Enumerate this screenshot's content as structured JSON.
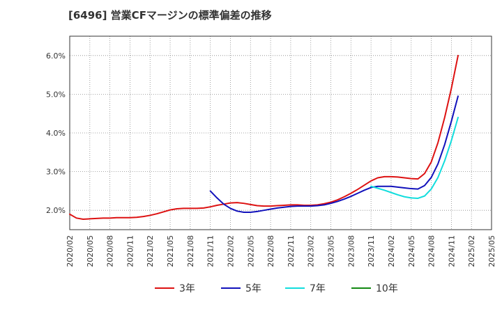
{
  "chart_data": {
    "type": "line",
    "title": "[6496]  営業CFマージンの標準偏差の推移",
    "xlabel": "",
    "ylabel": "",
    "ylim": [
      1.5,
      6.5
    ],
    "y_ticks": [
      2.0,
      3.0,
      4.0,
      5.0,
      6.0
    ],
    "y_tick_labels": [
      "2.0%",
      "3.0%",
      "4.0%",
      "5.0%",
      "6.0%"
    ],
    "x_ticks": [
      "2020/02",
      "2020/05",
      "2020/08",
      "2020/11",
      "2021/02",
      "2021/05",
      "2021/08",
      "2021/11",
      "2022/02",
      "2022/05",
      "2022/08",
      "2022/11",
      "2023/02",
      "2023/05",
      "2023/08",
      "2023/11",
      "2024/02",
      "2024/05",
      "2024/08",
      "2024/11",
      "2025/02",
      "2025/05"
    ],
    "grid": true,
    "legend_position": "bottom",
    "series": [
      {
        "name": "3年",
        "color": "#dd1111",
        "points": [
          [
            "2020/02",
            1.9
          ],
          [
            "2020/03",
            1.8
          ],
          [
            "2020/04",
            1.77
          ],
          [
            "2020/05",
            1.78
          ],
          [
            "2020/06",
            1.79
          ],
          [
            "2020/07",
            1.8
          ],
          [
            "2020/08",
            1.8
          ],
          [
            "2020/09",
            1.81
          ],
          [
            "2020/10",
            1.81
          ],
          [
            "2020/11",
            1.81
          ],
          [
            "2020/12",
            1.82
          ],
          [
            "2021/01",
            1.84
          ],
          [
            "2021/02",
            1.87
          ],
          [
            "2021/03",
            1.91
          ],
          [
            "2021/04",
            1.96
          ],
          [
            "2021/05",
            2.01
          ],
          [
            "2021/06",
            2.04
          ],
          [
            "2021/07",
            2.05
          ],
          [
            "2021/08",
            2.05
          ],
          [
            "2021/09",
            2.05
          ],
          [
            "2021/10",
            2.06
          ],
          [
            "2021/11",
            2.09
          ],
          [
            "2021/12",
            2.13
          ],
          [
            "2022/01",
            2.16
          ],
          [
            "2022/02",
            2.19
          ],
          [
            "2022/03",
            2.2
          ],
          [
            "2022/04",
            2.18
          ],
          [
            "2022/05",
            2.15
          ],
          [
            "2022/06",
            2.12
          ],
          [
            "2022/07",
            2.11
          ],
          [
            "2022/08",
            2.11
          ],
          [
            "2022/09",
            2.12
          ],
          [
            "2022/10",
            2.13
          ],
          [
            "2022/11",
            2.14
          ],
          [
            "2022/12",
            2.14
          ],
          [
            "2023/01",
            2.13
          ],
          [
            "2023/02",
            2.13
          ],
          [
            "2023/03",
            2.14
          ],
          [
            "2023/04",
            2.17
          ],
          [
            "2023/05",
            2.21
          ],
          [
            "2023/06",
            2.27
          ],
          [
            "2023/07",
            2.35
          ],
          [
            "2023/08",
            2.44
          ],
          [
            "2023/09",
            2.54
          ],
          [
            "2023/10",
            2.65
          ],
          [
            "2023/11",
            2.76
          ],
          [
            "2023/12",
            2.84
          ],
          [
            "2024/01",
            2.87
          ],
          [
            "2024/02",
            2.87
          ],
          [
            "2024/03",
            2.86
          ],
          [
            "2024/04",
            2.84
          ],
          [
            "2024/05",
            2.82
          ],
          [
            "2024/06",
            2.81
          ],
          [
            "2024/07",
            2.95
          ],
          [
            "2024/08",
            3.25
          ],
          [
            "2024/09",
            3.75
          ],
          [
            "2024/10",
            4.4
          ],
          [
            "2024/11",
            5.15
          ],
          [
            "2024/12",
            6.0
          ]
        ]
      },
      {
        "name": "5年",
        "color": "#1111bb",
        "points": [
          [
            "2021/11",
            2.5
          ],
          [
            "2021/12",
            2.32
          ],
          [
            "2022/01",
            2.16
          ],
          [
            "2022/02",
            2.05
          ],
          [
            "2022/03",
            1.98
          ],
          [
            "2022/04",
            1.95
          ],
          [
            "2022/05",
            1.95
          ],
          [
            "2022/06",
            1.97
          ],
          [
            "2022/07",
            2.0
          ],
          [
            "2022/08",
            2.03
          ],
          [
            "2022/09",
            2.06
          ],
          [
            "2022/10",
            2.08
          ],
          [
            "2022/11",
            2.1
          ],
          [
            "2022/12",
            2.11
          ],
          [
            "2023/01",
            2.11
          ],
          [
            "2023/02",
            2.11
          ],
          [
            "2023/03",
            2.12
          ],
          [
            "2023/04",
            2.14
          ],
          [
            "2023/05",
            2.18
          ],
          [
            "2023/06",
            2.23
          ],
          [
            "2023/07",
            2.29
          ],
          [
            "2023/08",
            2.36
          ],
          [
            "2023/09",
            2.44
          ],
          [
            "2023/10",
            2.52
          ],
          [
            "2023/11",
            2.59
          ],
          [
            "2023/12",
            2.62
          ],
          [
            "2024/01",
            2.62
          ],
          [
            "2024/02",
            2.62
          ],
          [
            "2024/03",
            2.6
          ],
          [
            "2024/04",
            2.58
          ],
          [
            "2024/05",
            2.56
          ],
          [
            "2024/06",
            2.55
          ],
          [
            "2024/07",
            2.64
          ],
          [
            "2024/08",
            2.85
          ],
          [
            "2024/09",
            3.2
          ],
          [
            "2024/10",
            3.7
          ],
          [
            "2024/11",
            4.3
          ],
          [
            "2024/12",
            4.95
          ]
        ]
      },
      {
        "name": "7年",
        "color": "#11dddd",
        "points": [
          [
            "2023/11",
            2.62
          ],
          [
            "2023/12",
            2.57
          ],
          [
            "2024/01",
            2.52
          ],
          [
            "2024/02",
            2.46
          ],
          [
            "2024/03",
            2.4
          ],
          [
            "2024/04",
            2.35
          ],
          [
            "2024/05",
            2.32
          ],
          [
            "2024/06",
            2.31
          ],
          [
            "2024/07",
            2.37
          ],
          [
            "2024/08",
            2.55
          ],
          [
            "2024/09",
            2.85
          ],
          [
            "2024/10",
            3.28
          ],
          [
            "2024/11",
            3.8
          ],
          [
            "2024/12",
            4.4
          ]
        ]
      },
      {
        "name": "10年",
        "color": "#118811",
        "points": []
      }
    ]
  }
}
